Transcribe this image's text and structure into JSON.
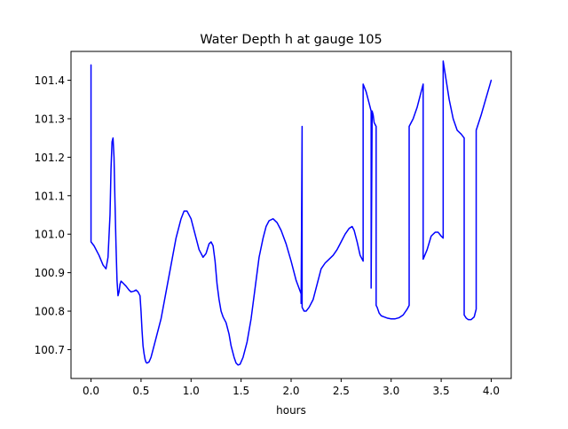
{
  "chart_data": {
    "type": "line",
    "title": "Water Depth h at gauge 105",
    "xlabel": "hours",
    "ylabel": "",
    "xlim": [
      -0.2,
      4.2
    ],
    "ylim": [
      100.625,
      101.475
    ],
    "grid": false,
    "line_color": "#0000ff",
    "x_ticks": [
      {
        "value": 0.0,
        "label": "0.0"
      },
      {
        "value": 0.5,
        "label": "0.5"
      },
      {
        "value": 1.0,
        "label": "1.0"
      },
      {
        "value": 1.5,
        "label": "1.5"
      },
      {
        "value": 2.0,
        "label": "2.0"
      },
      {
        "value": 2.5,
        "label": "2.5"
      },
      {
        "value": 3.0,
        "label": "3.0"
      },
      {
        "value": 3.5,
        "label": "3.5"
      },
      {
        "value": 4.0,
        "label": "4.0"
      }
    ],
    "y_ticks": [
      {
        "value": 100.7,
        "label": "100.7"
      },
      {
        "value": 100.8,
        "label": "100.8"
      },
      {
        "value": 100.9,
        "label": "100.9"
      },
      {
        "value": 101.0,
        "label": "101.0"
      },
      {
        "value": 101.1,
        "label": "101.1"
      },
      {
        "value": 101.2,
        "label": "101.2"
      },
      {
        "value": 101.3,
        "label": "101.3"
      },
      {
        "value": 101.4,
        "label": "101.4"
      }
    ],
    "series": [
      {
        "x": [
          0.0,
          0.0,
          0.03,
          0.08,
          0.12,
          0.15,
          0.17,
          0.19,
          0.2,
          0.21,
          0.22,
          0.23,
          0.24,
          0.25,
          0.26,
          0.27,
          0.28,
          0.29,
          0.3,
          0.32,
          0.35,
          0.38,
          0.4,
          0.43,
          0.45,
          0.47,
          0.49,
          0.5,
          0.51,
          0.52,
          0.53,
          0.54,
          0.55,
          0.56,
          0.58,
          0.6,
          0.62,
          0.65,
          0.7,
          0.75,
          0.8,
          0.85,
          0.9,
          0.93,
          0.96,
          1.0,
          1.04,
          1.08,
          1.12,
          1.15,
          1.18,
          1.2,
          1.22,
          1.24,
          1.26,
          1.28,
          1.3,
          1.32,
          1.35,
          1.38,
          1.4,
          1.43,
          1.45,
          1.47,
          1.49,
          1.52,
          1.56,
          1.6,
          1.64,
          1.68,
          1.72,
          1.75,
          1.78,
          1.82,
          1.86,
          1.9,
          1.95,
          2.0,
          2.05,
          2.1,
          2.1,
          2.11,
          2.11,
          2.13,
          2.15,
          2.18,
          2.22,
          2.26,
          2.3,
          2.34,
          2.38,
          2.42,
          2.46,
          2.5,
          2.54,
          2.58,
          2.61,
          2.63,
          2.66,
          2.69,
          2.72,
          2.72,
          2.75,
          2.78,
          2.79,
          2.8,
          2.8,
          2.81,
          2.82,
          2.83,
          2.85,
          2.85,
          2.86,
          2.88,
          2.9,
          2.93,
          2.96,
          3.0,
          3.04,
          3.08,
          3.12,
          3.16,
          3.18,
          3.18,
          3.22,
          3.26,
          3.3,
          3.32,
          3.32,
          3.36,
          3.4,
          3.44,
          3.47,
          3.5,
          3.52,
          3.52,
          3.55,
          3.58,
          3.62,
          3.66,
          3.7,
          3.73,
          3.73,
          3.75,
          3.77,
          3.8,
          3.83,
          3.85,
          3.85,
          3.9,
          3.95,
          4.0
        ],
        "y": [
          101.44,
          100.98,
          100.97,
          100.945,
          100.92,
          100.91,
          100.94,
          101.05,
          101.17,
          101.24,
          101.25,
          101.2,
          101.08,
          100.97,
          100.88,
          100.84,
          100.85,
          100.87,
          100.878,
          100.873,
          100.865,
          100.855,
          100.85,
          100.852,
          100.855,
          100.85,
          100.84,
          100.8,
          100.75,
          100.71,
          100.69,
          100.675,
          100.667,
          100.665,
          100.668,
          100.68,
          100.7,
          100.73,
          100.78,
          100.85,
          100.92,
          100.99,
          101.04,
          101.06,
          101.06,
          101.04,
          101.0,
          100.96,
          100.94,
          100.95,
          100.975,
          100.98,
          100.97,
          100.93,
          100.87,
          100.83,
          100.8,
          100.785,
          100.77,
          100.74,
          100.71,
          100.68,
          100.665,
          100.66,
          100.662,
          100.68,
          100.72,
          100.78,
          100.86,
          100.94,
          100.99,
          101.02,
          101.035,
          101.04,
          101.03,
          101.01,
          100.975,
          100.93,
          100.88,
          100.845,
          100.82,
          101.28,
          100.81,
          100.8,
          100.8,
          100.81,
          100.83,
          100.87,
          100.91,
          100.925,
          100.935,
          100.945,
          100.96,
          100.98,
          101.0,
          101.015,
          101.02,
          101.01,
          100.98,
          100.945,
          100.93,
          101.39,
          101.37,
          101.34,
          101.33,
          101.32,
          100.86,
          101.32,
          101.31,
          101.29,
          101.28,
          100.815,
          100.81,
          100.795,
          100.788,
          100.785,
          100.782,
          100.78,
          100.78,
          100.783,
          100.79,
          100.805,
          100.815,
          101.28,
          101.3,
          101.33,
          101.37,
          101.39,
          100.935,
          100.96,
          100.995,
          101.005,
          101.005,
          100.995,
          100.99,
          101.45,
          101.4,
          101.35,
          101.3,
          101.27,
          101.26,
          101.25,
          100.79,
          100.782,
          100.778,
          100.778,
          100.785,
          100.805,
          101.27,
          101.31,
          101.355,
          101.4
        ]
      }
    ]
  }
}
